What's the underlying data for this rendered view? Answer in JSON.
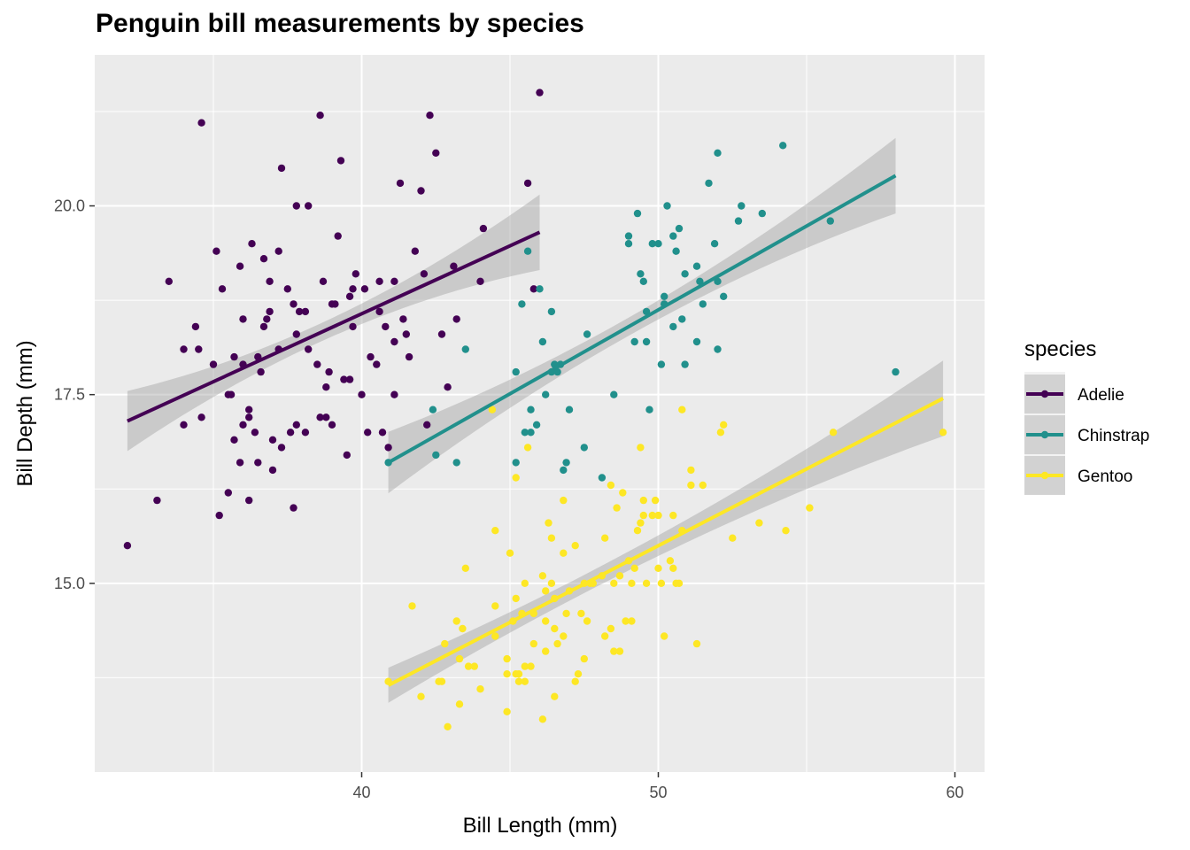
{
  "chart_data": {
    "type": "scatter",
    "title": "Penguin bill measurements by species",
    "xlabel": "Bill Length (mm)",
    "ylabel": "Bill Depth (mm)",
    "xlim": [
      31.0,
      61.0
    ],
    "ylim": [
      12.5,
      22.0
    ],
    "x_ticks": [
      40,
      50,
      60
    ],
    "y_ticks": [
      15.0,
      17.5,
      20.0
    ],
    "x_tick_labels": [
      "40",
      "50",
      "60"
    ],
    "y_tick_labels": [
      "15.0",
      "17.5",
      "20.0"
    ],
    "grid": true,
    "legend": {
      "title": "species",
      "position": "right"
    },
    "series": [
      {
        "name": "Adelie",
        "color": "#440154",
        "trend": {
          "x": [
            32.1,
            46.0
          ],
          "y": [
            17.15,
            19.65
          ]
        },
        "points": [
          [
            32.1,
            15.5
          ],
          [
            33.1,
            16.1
          ],
          [
            33.5,
            19.0
          ],
          [
            34.0,
            17.1
          ],
          [
            34.0,
            18.1
          ],
          [
            34.4,
            18.4
          ],
          [
            34.5,
            18.1
          ],
          [
            34.6,
            21.1
          ],
          [
            34.6,
            17.2
          ],
          [
            35.0,
            17.9
          ],
          [
            35.1,
            19.4
          ],
          [
            35.2,
            15.9
          ],
          [
            35.3,
            18.9
          ],
          [
            35.5,
            16.2
          ],
          [
            35.5,
            17.5
          ],
          [
            35.6,
            17.5
          ],
          [
            35.7,
            16.9
          ],
          [
            35.7,
            18.0
          ],
          [
            35.9,
            16.6
          ],
          [
            35.9,
            19.2
          ],
          [
            36.0,
            17.1
          ],
          [
            36.0,
            17.9
          ],
          [
            36.0,
            18.5
          ],
          [
            36.2,
            16.1
          ],
          [
            36.2,
            17.2
          ],
          [
            36.2,
            17.3
          ],
          [
            36.3,
            19.5
          ],
          [
            36.4,
            17.0
          ],
          [
            36.5,
            16.6
          ],
          [
            36.5,
            18.0
          ],
          [
            36.6,
            17.8
          ],
          [
            36.7,
            18.4
          ],
          [
            36.7,
            19.3
          ],
          [
            36.8,
            18.5
          ],
          [
            36.9,
            18.6
          ],
          [
            37.0,
            16.9
          ],
          [
            37.0,
            16.5
          ],
          [
            37.2,
            18.1
          ],
          [
            37.2,
            19.4
          ],
          [
            37.3,
            16.8
          ],
          [
            37.3,
            20.5
          ],
          [
            37.5,
            18.9
          ],
          [
            37.6,
            17.0
          ],
          [
            37.7,
            16.0
          ],
          [
            37.7,
            18.7
          ],
          [
            37.8,
            17.1
          ],
          [
            37.8,
            18.3
          ],
          [
            37.8,
            20.0
          ],
          [
            37.9,
            18.6
          ],
          [
            38.1,
            18.6
          ],
          [
            38.1,
            17.0
          ],
          [
            38.2,
            18.1
          ],
          [
            38.2,
            20.0
          ],
          [
            38.5,
            17.9
          ],
          [
            38.6,
            17.2
          ],
          [
            38.6,
            21.2
          ],
          [
            38.7,
            19.0
          ],
          [
            38.8,
            17.2
          ],
          [
            38.8,
            17.6
          ],
          [
            38.9,
            17.8
          ],
          [
            39.0,
            17.1
          ],
          [
            39.0,
            18.7
          ],
          [
            39.1,
            18.7
          ],
          [
            39.2,
            19.6
          ],
          [
            39.3,
            20.6
          ],
          [
            39.5,
            16.7
          ],
          [
            39.6,
            17.7
          ],
          [
            39.6,
            18.8
          ],
          [
            39.7,
            18.4
          ],
          [
            39.7,
            18.9
          ],
          [
            39.8,
            19.1
          ],
          [
            40.1,
            18.9
          ],
          [
            40.2,
            17.0
          ],
          [
            40.3,
            18.0
          ],
          [
            40.5,
            17.9
          ],
          [
            40.6,
            18.6
          ],
          [
            40.6,
            19.0
          ],
          [
            40.7,
            17.0
          ],
          [
            40.8,
            18.4
          ],
          [
            40.9,
            16.8
          ],
          [
            41.1,
            17.5
          ],
          [
            41.1,
            18.2
          ],
          [
            41.1,
            19.0
          ],
          [
            41.3,
            20.3
          ],
          [
            41.4,
            18.5
          ],
          [
            41.5,
            18.3
          ],
          [
            41.6,
            18.0
          ],
          [
            41.8,
            19.4
          ],
          [
            42.0,
            20.2
          ],
          [
            42.1,
            19.1
          ],
          [
            42.2,
            17.1
          ],
          [
            42.3,
            21.2
          ],
          [
            42.5,
            20.7
          ],
          [
            42.7,
            18.3
          ],
          [
            42.9,
            17.6
          ],
          [
            43.1,
            19.2
          ],
          [
            43.2,
            18.5
          ],
          [
            44.1,
            19.7
          ],
          [
            45.6,
            20.3
          ],
          [
            45.8,
            18.9
          ],
          [
            46.0,
            21.5
          ],
          [
            44.0,
            19.0
          ],
          [
            40.0,
            17.5
          ],
          [
            36.9,
            19.0
          ],
          [
            39.4,
            17.7
          ]
        ]
      },
      {
        "name": "Chinstrap",
        "color": "#21908C",
        "trend": {
          "x": [
            40.9,
            58.0
          ],
          "y": [
            16.6,
            20.4
          ]
        },
        "points": [
          [
            40.9,
            16.6
          ],
          [
            42.4,
            17.3
          ],
          [
            42.5,
            16.7
          ],
          [
            43.2,
            16.6
          ],
          [
            43.5,
            18.1
          ],
          [
            45.2,
            16.6
          ],
          [
            45.4,
            18.7
          ],
          [
            45.5,
            17.0
          ],
          [
            45.6,
            19.4
          ],
          [
            45.7,
            17.0
          ],
          [
            45.7,
            17.3
          ],
          [
            45.9,
            17.1
          ],
          [
            46.0,
            18.9
          ],
          [
            46.1,
            18.2
          ],
          [
            46.2,
            17.5
          ],
          [
            46.4,
            18.6
          ],
          [
            46.4,
            17.8
          ],
          [
            46.5,
            17.9
          ],
          [
            46.6,
            17.8
          ],
          [
            46.7,
            17.9
          ],
          [
            46.8,
            16.5
          ],
          [
            46.9,
            16.6
          ],
          [
            47.0,
            17.3
          ],
          [
            47.5,
            16.8
          ],
          [
            47.6,
            18.3
          ],
          [
            48.5,
            17.5
          ],
          [
            49.0,
            19.5
          ],
          [
            49.0,
            19.6
          ],
          [
            49.2,
            18.2
          ],
          [
            49.3,
            19.9
          ],
          [
            49.5,
            19.0
          ],
          [
            49.6,
            18.2
          ],
          [
            49.6,
            18.6
          ],
          [
            49.7,
            17.3
          ],
          [
            49.8,
            19.5
          ],
          [
            50.0,
            19.5
          ],
          [
            50.1,
            17.9
          ],
          [
            50.2,
            18.8
          ],
          [
            50.3,
            20.0
          ],
          [
            50.5,
            18.4
          ],
          [
            50.5,
            19.6
          ],
          [
            50.6,
            19.4
          ],
          [
            50.7,
            19.7
          ],
          [
            50.8,
            18.5
          ],
          [
            50.9,
            17.9
          ],
          [
            50.9,
            19.1
          ],
          [
            51.3,
            18.2
          ],
          [
            51.3,
            19.2
          ],
          [
            51.4,
            19.0
          ],
          [
            51.5,
            18.7
          ],
          [
            51.9,
            19.5
          ],
          [
            52.0,
            18.1
          ],
          [
            52.0,
            19.0
          ],
          [
            52.0,
            20.7
          ],
          [
            52.2,
            18.8
          ],
          [
            52.7,
            19.8
          ],
          [
            52.8,
            20.0
          ],
          [
            53.5,
            19.9
          ],
          [
            54.2,
            20.8
          ],
          [
            55.8,
            19.8
          ],
          [
            58.0,
            17.8
          ],
          [
            50.2,
            18.7
          ],
          [
            51.7,
            20.3
          ],
          [
            45.2,
            17.8
          ],
          [
            48.1,
            16.4
          ],
          [
            49.4,
            19.1
          ]
        ]
      },
      {
        "name": "Gentoo",
        "color": "#FDE725",
        "trend": {
          "x": [
            40.9,
            59.6
          ],
          "y": [
            13.65,
            17.45
          ]
        },
        "points": [
          [
            40.9,
            13.7
          ],
          [
            41.7,
            14.7
          ],
          [
            42.0,
            13.5
          ],
          [
            42.6,
            13.7
          ],
          [
            42.7,
            13.7
          ],
          [
            42.8,
            14.2
          ],
          [
            42.9,
            13.1
          ],
          [
            43.2,
            14.5
          ],
          [
            43.3,
            13.4
          ],
          [
            43.3,
            14.0
          ],
          [
            43.4,
            14.4
          ],
          [
            43.5,
            15.2
          ],
          [
            43.6,
            13.9
          ],
          [
            43.8,
            13.9
          ],
          [
            44.0,
            13.6
          ],
          [
            44.4,
            17.3
          ],
          [
            44.5,
            14.3
          ],
          [
            44.5,
            14.7
          ],
          [
            44.5,
            15.7
          ],
          [
            44.9,
            13.3
          ],
          [
            44.9,
            13.8
          ],
          [
            45.0,
            15.4
          ],
          [
            45.1,
            14.5
          ],
          [
            45.2,
            13.8
          ],
          [
            45.2,
            14.8
          ],
          [
            45.2,
            16.4
          ],
          [
            45.3,
            13.8
          ],
          [
            45.3,
            13.7
          ],
          [
            45.4,
            14.6
          ],
          [
            45.5,
            13.7
          ],
          [
            45.5,
            13.9
          ],
          [
            45.5,
            15.0
          ],
          [
            45.7,
            13.9
          ],
          [
            45.8,
            14.2
          ],
          [
            45.8,
            14.6
          ],
          [
            46.1,
            13.2
          ],
          [
            46.1,
            15.1
          ],
          [
            46.2,
            14.1
          ],
          [
            46.2,
            14.5
          ],
          [
            46.2,
            14.9
          ],
          [
            46.3,
            15.8
          ],
          [
            46.4,
            15.0
          ],
          [
            46.4,
            15.6
          ],
          [
            46.5,
            13.5
          ],
          [
            46.5,
            14.4
          ],
          [
            46.5,
            14.8
          ],
          [
            46.6,
            14.2
          ],
          [
            46.8,
            14.3
          ],
          [
            46.8,
            15.4
          ],
          [
            46.8,
            16.1
          ],
          [
            46.9,
            14.6
          ],
          [
            47.2,
            13.7
          ],
          [
            47.2,
            15.5
          ],
          [
            47.3,
            13.8
          ],
          [
            47.4,
            14.6
          ],
          [
            47.5,
            14.0
          ],
          [
            47.5,
            15.0
          ],
          [
            47.6,
            14.5
          ],
          [
            47.7,
            15.0
          ],
          [
            47.8,
            15.0
          ],
          [
            48.1,
            15.1
          ],
          [
            48.2,
            14.3
          ],
          [
            48.2,
            15.6
          ],
          [
            48.4,
            14.4
          ],
          [
            48.4,
            16.3
          ],
          [
            48.5,
            14.1
          ],
          [
            48.5,
            15.0
          ],
          [
            48.6,
            16.0
          ],
          [
            48.7,
            14.1
          ],
          [
            48.7,
            15.1
          ],
          [
            48.8,
            16.2
          ],
          [
            49.0,
            15.3
          ],
          [
            49.1,
            14.5
          ],
          [
            49.1,
            15.0
          ],
          [
            49.2,
            15.2
          ],
          [
            49.3,
            15.7
          ],
          [
            49.4,
            15.8
          ],
          [
            49.5,
            15.9
          ],
          [
            49.5,
            16.1
          ],
          [
            49.6,
            15.0
          ],
          [
            49.8,
            15.9
          ],
          [
            49.9,
            16.1
          ],
          [
            50.0,
            15.2
          ],
          [
            50.0,
            15.9
          ],
          [
            50.1,
            15.0
          ],
          [
            50.2,
            14.3
          ],
          [
            50.4,
            15.3
          ],
          [
            50.5,
            15.2
          ],
          [
            50.5,
            15.9
          ],
          [
            50.7,
            15.0
          ],
          [
            50.8,
            15.7
          ],
          [
            50.8,
            17.3
          ],
          [
            51.1,
            16.3
          ],
          [
            51.1,
            16.5
          ],
          [
            51.3,
            14.2
          ],
          [
            51.5,
            16.3
          ],
          [
            52.1,
            17.0
          ],
          [
            52.2,
            17.1
          ],
          [
            52.5,
            15.6
          ],
          [
            53.4,
            15.8
          ],
          [
            54.3,
            15.7
          ],
          [
            55.1,
            16.0
          ],
          [
            55.9,
            17.0
          ],
          [
            59.6,
            17.0
          ],
          [
            49.4,
            16.8
          ],
          [
            47.0,
            14.9
          ],
          [
            45.6,
            16.8
          ],
          [
            44.9,
            14.0
          ],
          [
            48.9,
            14.5
          ],
          [
            50.6,
            15.0
          ]
        ]
      }
    ]
  }
}
